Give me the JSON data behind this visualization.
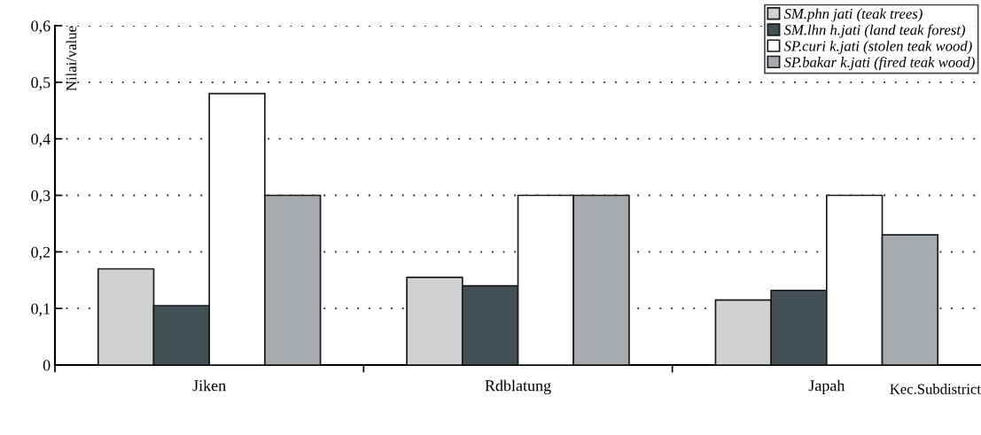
{
  "chart_data": {
    "type": "bar",
    "xlabel": "Kec.Subdistrict",
    "ylabel": "Nilai/value",
    "categories": [
      "Jiken",
      "Rdblatung",
      "Japah"
    ],
    "series": [
      {
        "name": "SM.phn jati (teak trees)",
        "color": "#d0d1d3",
        "values": [
          0.17,
          0.155,
          0.115
        ]
      },
      {
        "name": "SM.lhn h.jati (land teak forest)",
        "color": "#424f54",
        "values": [
          0.105,
          0.14,
          0.132
        ]
      },
      {
        "name": "SP.curi k.jati (stolen teak wood)",
        "color": "#ffffff",
        "values": [
          0.48,
          0.3,
          0.3
        ]
      },
      {
        "name": "SP.bakar k.jati (fired teak wood)",
        "color": "#a7aaae",
        "values": [
          0.3,
          0.3,
          0.23
        ]
      }
    ],
    "ylim": [
      0,
      0.6
    ],
    "yticks": [
      {
        "value": 0,
        "label": "0"
      },
      {
        "value": 0.1,
        "label": "0,1"
      },
      {
        "value": 0.2,
        "label": "0,2"
      },
      {
        "value": 0.3,
        "label": "0,3"
      },
      {
        "value": 0.4,
        "label": "0,4"
      },
      {
        "value": 0.5,
        "label": "0,5"
      },
      {
        "value": 0.6,
        "label": "0,6"
      }
    ],
    "grid": "y",
    "legend": "top right"
  }
}
